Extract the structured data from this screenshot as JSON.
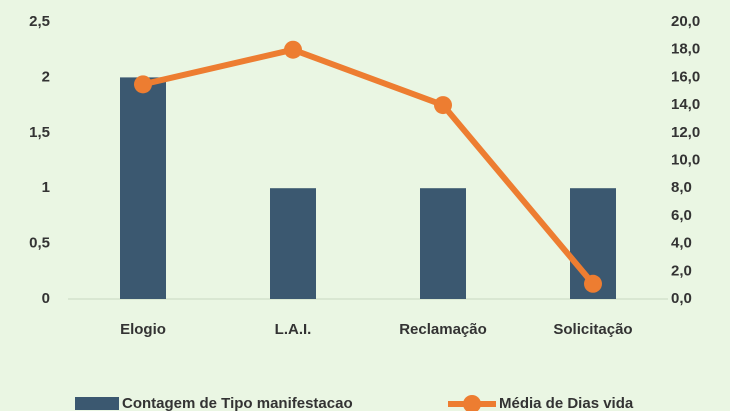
{
  "chart_data": {
    "type": "bar_line",
    "categories": [
      "Elogio",
      "L.A.I.",
      "Reclamação",
      "Solicitação"
    ],
    "series": [
      {
        "name": "Contagem de Tipo manifestacao",
        "type": "bar",
        "color": "#3b5870",
        "axis": "y",
        "values": [
          2,
          1,
          1,
          1
        ]
      },
      {
        "name": "Média de Dias vida",
        "type": "line",
        "color": "#ed7d31",
        "axis": "y2",
        "values": [
          15.5,
          18,
          14,
          1.1
        ]
      }
    ],
    "ylim": [
      0,
      2.5
    ],
    "yticks": [
      0,
      {
        "value": 0.5,
        "label": "0,5"
      },
      1,
      {
        "value": 1.5,
        "label": "1,5"
      },
      2,
      {
        "value": 2.5,
        "label": "2,5"
      }
    ],
    "y2lim": [
      0,
      20
    ],
    "y2ticks": [
      {
        "value": 0,
        "label": "0,0"
      },
      {
        "value": 2,
        "label": "2,0"
      },
      {
        "value": 4,
        "label": "4,0"
      },
      {
        "value": 6,
        "label": "6,0"
      },
      {
        "value": 8,
        "label": "8,0"
      },
      {
        "value": 10,
        "label": "10,0"
      },
      {
        "value": 12,
        "label": "12,0"
      },
      {
        "value": 14,
        "label": "14,0"
      },
      {
        "value": 16,
        "label": "16,0"
      },
      {
        "value": 18,
        "label": "18,0"
      },
      {
        "value": 20,
        "label": "20,0"
      }
    ],
    "legend": "bottom",
    "grid": false
  }
}
